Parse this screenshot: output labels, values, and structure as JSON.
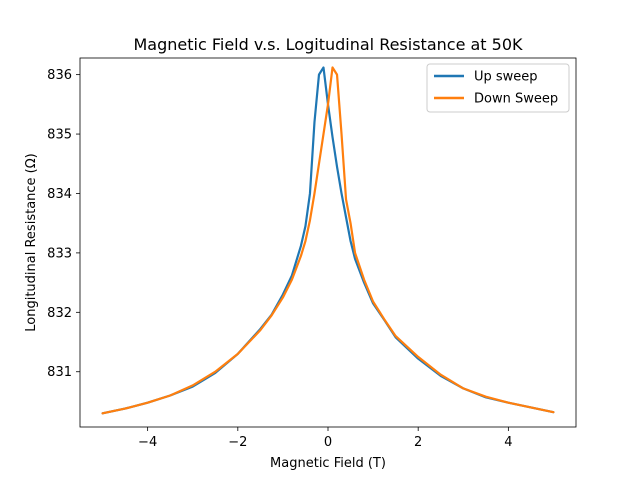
{
  "chart_data": {
    "type": "line",
    "title": "Magnetic Field v.s. Logitudinal Resistance at 50K",
    "xlabel": "Magnetic Field (T)",
    "ylabel": "Longitudinal Resistance (Ω)",
    "xlim": [
      -5.5,
      5.5
    ],
    "ylim": [
      830.07,
      836.28
    ],
    "xticks": [
      -4,
      -2,
      0,
      2,
      4
    ],
    "xtick_labels": [
      "−4",
      "−2",
      "0",
      "2",
      "4"
    ],
    "yticks": [
      831,
      832,
      833,
      834,
      835,
      836
    ],
    "ytick_labels": [
      "831",
      "832",
      "833",
      "834",
      "835",
      "836"
    ],
    "grid": false,
    "legend_position": "top-right",
    "series": [
      {
        "name": "Up sweep",
        "color": "#1f77b4",
        "x": [
          -5,
          -4.5,
          -4,
          -3.5,
          -3,
          -2.5,
          -2,
          -1.5,
          -1.25,
          -1,
          -0.8,
          -0.6,
          -0.5,
          -0.4,
          -0.3,
          -0.2,
          -0.1,
          0,
          0.1,
          0.2,
          0.3,
          0.4,
          0.5,
          0.6,
          0.8,
          1,
          1.25,
          1.5,
          2,
          2.5,
          3,
          3.5,
          4,
          4.5,
          5
        ],
        "y": [
          830.3,
          830.38,
          830.48,
          830.6,
          830.75,
          830.98,
          831.3,
          831.72,
          831.96,
          832.3,
          832.62,
          833.12,
          833.45,
          834.0,
          835.2,
          836.0,
          836.12,
          835.5,
          834.95,
          834.45,
          834.0,
          833.6,
          833.2,
          832.9,
          832.5,
          832.15,
          831.87,
          831.58,
          831.22,
          830.93,
          830.72,
          830.57,
          830.48,
          830.4,
          830.32
        ]
      },
      {
        "name": "Down Sweep",
        "color": "#ff7f0e",
        "x": [
          -5,
          -4.5,
          -4,
          -3.5,
          -3,
          -2.5,
          -2,
          -1.5,
          -1.25,
          -1,
          -0.8,
          -0.6,
          -0.5,
          -0.4,
          -0.3,
          -0.2,
          -0.1,
          0,
          0.1,
          0.2,
          0.3,
          0.4,
          0.5,
          0.6,
          0.8,
          1,
          1.25,
          1.5,
          2,
          2.5,
          3,
          3.5,
          4,
          4.5,
          5
        ],
        "y": [
          830.3,
          830.38,
          830.48,
          830.6,
          830.77,
          831.0,
          831.3,
          831.7,
          831.95,
          832.25,
          832.55,
          832.95,
          833.2,
          833.55,
          834.0,
          834.5,
          835.0,
          835.5,
          836.12,
          836.0,
          835.0,
          833.9,
          833.5,
          833.0,
          832.55,
          832.18,
          831.88,
          831.6,
          831.25,
          830.95,
          830.72,
          830.58,
          830.48,
          830.4,
          830.32
        ]
      }
    ]
  }
}
